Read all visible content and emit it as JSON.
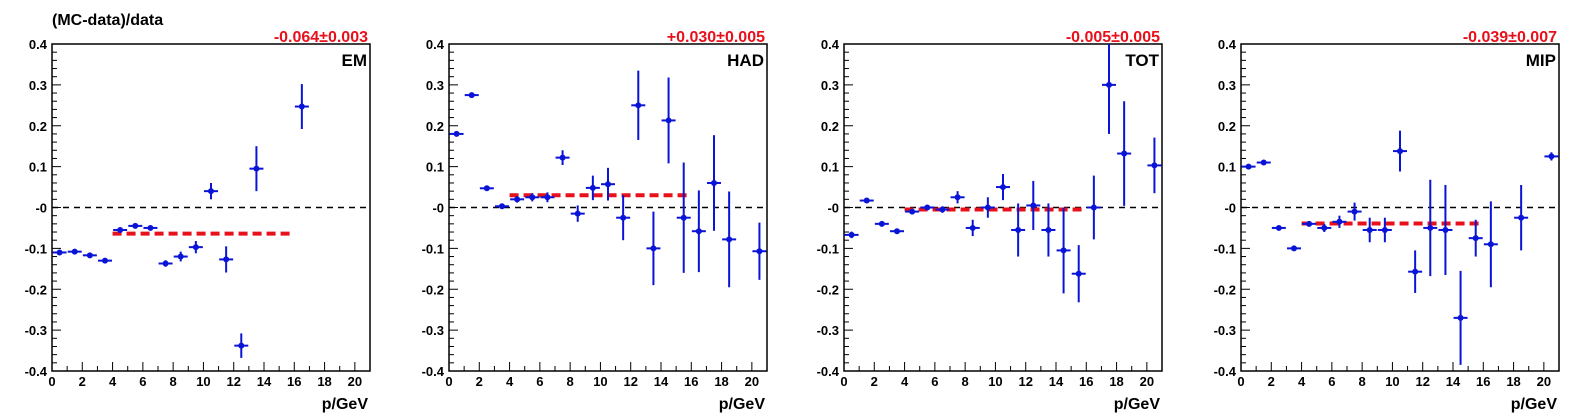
{
  "chart_data": {
    "type": "scatter",
    "ylabel": "(MC-data)/data",
    "xlabel": "p/GeV",
    "xlim": [
      0,
      21
    ],
    "ylim": [
      -0.4,
      0.4
    ],
    "x_ticks": [
      "0",
      "2",
      "4",
      "6",
      "8",
      "10",
      "12",
      "14",
      "16",
      "18",
      "20"
    ],
    "y_ticks": [
      "-0.4",
      "-0.3",
      "-0.2",
      "-0.1",
      "-0",
      "0.1",
      "0.2",
      "0.3",
      "0.4"
    ],
    "colors": {
      "points": "#0a14d6",
      "fit": "#e8111b",
      "zero_line": "#000000"
    },
    "panels": [
      {
        "title": "EM",
        "fit_label": "-0.064±0.003",
        "fit": {
          "value": -0.064,
          "x_range": [
            4,
            16
          ]
        },
        "points": [
          {
            "x": 0.5,
            "y": -0.11,
            "err": 0.005
          },
          {
            "x": 1.5,
            "y": -0.108,
            "err": 0.005
          },
          {
            "x": 2.5,
            "y": -0.117,
            "err": 0.005
          },
          {
            "x": 3.5,
            "y": -0.13,
            "err": 0.005
          },
          {
            "x": 4.5,
            "y": -0.055,
            "err": 0.005
          },
          {
            "x": 5.5,
            "y": -0.045,
            "err": 0.005
          },
          {
            "x": 6.5,
            "y": -0.05,
            "err": 0.006
          },
          {
            "x": 7.5,
            "y": -0.137,
            "err": 0.008
          },
          {
            "x": 8.5,
            "y": -0.12,
            "err": 0.012
          },
          {
            "x": 9.5,
            "y": -0.097,
            "err": 0.015
          },
          {
            "x": 10.5,
            "y": 0.04,
            "err": 0.02
          },
          {
            "x": 11.5,
            "y": -0.127,
            "err": 0.032
          },
          {
            "x": 12.5,
            "y": -0.338,
            "err": 0.03
          },
          {
            "x": 13.5,
            "y": 0.095,
            "err": 0.055
          },
          {
            "x": 16.5,
            "y": 0.247,
            "err": 0.055
          }
        ]
      },
      {
        "title": "HAD",
        "fit_label": "+0.030±0.005",
        "fit": {
          "value": 0.03,
          "x_range": [
            4,
            16
          ]
        },
        "points": [
          {
            "x": 0.5,
            "y": 0.18,
            "err": 0.005
          },
          {
            "x": 1.5,
            "y": 0.275,
            "err": 0.005
          },
          {
            "x": 2.5,
            "y": 0.047,
            "err": 0.005
          },
          {
            "x": 3.5,
            "y": 0.003,
            "err": 0.005
          },
          {
            "x": 4.5,
            "y": 0.02,
            "err": 0.008
          },
          {
            "x": 5.5,
            "y": 0.025,
            "err": 0.01
          },
          {
            "x": 6.5,
            "y": 0.025,
            "err": 0.012
          },
          {
            "x": 7.5,
            "y": 0.122,
            "err": 0.018
          },
          {
            "x": 8.5,
            "y": -0.015,
            "err": 0.02
          },
          {
            "x": 9.5,
            "y": 0.048,
            "err": 0.03
          },
          {
            "x": 10.5,
            "y": 0.057,
            "err": 0.04
          },
          {
            "x": 11.5,
            "y": -0.025,
            "err": 0.055
          },
          {
            "x": 12.5,
            "y": 0.25,
            "err": 0.085
          },
          {
            "x": 13.5,
            "y": -0.1,
            "err": 0.09
          },
          {
            "x": 14.5,
            "y": 0.213,
            "err": 0.105
          },
          {
            "x": 15.5,
            "y": -0.025,
            "err": 0.135
          },
          {
            "x": 16.5,
            "y": -0.058,
            "err": 0.1
          },
          {
            "x": 17.5,
            "y": 0.06,
            "err": 0.117
          },
          {
            "x": 18.5,
            "y": -0.078,
            "err": 0.117
          },
          {
            "x": 20.5,
            "y": -0.107,
            "err": 0.07
          }
        ]
      },
      {
        "title": "TOT",
        "fit_label": "-0.005±0.005",
        "fit": {
          "value": -0.005,
          "x_range": [
            4,
            16
          ]
        },
        "points": [
          {
            "x": 0.5,
            "y": -0.067,
            "err": 0.008
          },
          {
            "x": 1.5,
            "y": 0.017,
            "err": 0.006
          },
          {
            "x": 2.5,
            "y": -0.04,
            "err": 0.005
          },
          {
            "x": 3.5,
            "y": -0.058,
            "err": 0.005
          },
          {
            "x": 4.5,
            "y": -0.01,
            "err": 0.006
          },
          {
            "x": 5.5,
            "y": 0.0,
            "err": 0.006
          },
          {
            "x": 6.5,
            "y": -0.005,
            "err": 0.008
          },
          {
            "x": 7.5,
            "y": 0.025,
            "err": 0.015
          },
          {
            "x": 8.5,
            "y": -0.05,
            "err": 0.02
          },
          {
            "x": 9.5,
            "y": 0.0,
            "err": 0.025
          },
          {
            "x": 10.5,
            "y": 0.05,
            "err": 0.032
          },
          {
            "x": 11.5,
            "y": -0.055,
            "err": 0.065
          },
          {
            "x": 12.5,
            "y": 0.005,
            "err": 0.06
          },
          {
            "x": 13.5,
            "y": -0.055,
            "err": 0.065
          },
          {
            "x": 14.5,
            "y": -0.105,
            "err": 0.105
          },
          {
            "x": 15.5,
            "y": -0.162,
            "err": 0.07
          },
          {
            "x": 16.5,
            "y": 0.0,
            "err": 0.078
          },
          {
            "x": 17.5,
            "y": 0.3,
            "err": 0.12
          },
          {
            "x": 18.5,
            "y": 0.132,
            "err": 0.128
          },
          {
            "x": 20.5,
            "y": 0.103,
            "err": 0.068
          }
        ]
      },
      {
        "title": "MIP",
        "fit_label": "-0.039±0.007",
        "fit": {
          "value": -0.039,
          "x_range": [
            4,
            16
          ]
        },
        "points": [
          {
            "x": 0.5,
            "y": 0.1,
            "err": 0.005
          },
          {
            "x": 1.5,
            "y": 0.11,
            "err": 0.005
          },
          {
            "x": 2.5,
            "y": -0.05,
            "err": 0.005
          },
          {
            "x": 3.5,
            "y": -0.1,
            "err": 0.005
          },
          {
            "x": 4.5,
            "y": -0.04,
            "err": 0.007
          },
          {
            "x": 5.5,
            "y": -0.05,
            "err": 0.01
          },
          {
            "x": 6.5,
            "y": -0.035,
            "err": 0.015
          },
          {
            "x": 7.5,
            "y": -0.01,
            "err": 0.022
          },
          {
            "x": 8.5,
            "y": -0.055,
            "err": 0.03
          },
          {
            "x": 9.5,
            "y": -0.055,
            "err": 0.03
          },
          {
            "x": 10.5,
            "y": 0.138,
            "err": 0.05
          },
          {
            "x": 11.5,
            "y": -0.157,
            "err": 0.052
          },
          {
            "x": 12.5,
            "y": -0.05,
            "err": 0.118
          },
          {
            "x": 13.5,
            "y": -0.055,
            "err": 0.11
          },
          {
            "x": 14.5,
            "y": -0.27,
            "err": 0.115
          },
          {
            "x": 15.5,
            "y": -0.075,
            "err": 0.045
          },
          {
            "x": 16.5,
            "y": -0.09,
            "err": 0.105
          },
          {
            "x": 18.5,
            "y": -0.025,
            "err": 0.08
          },
          {
            "x": 20.5,
            "y": 0.125,
            "err": 0.01
          }
        ]
      }
    ]
  }
}
